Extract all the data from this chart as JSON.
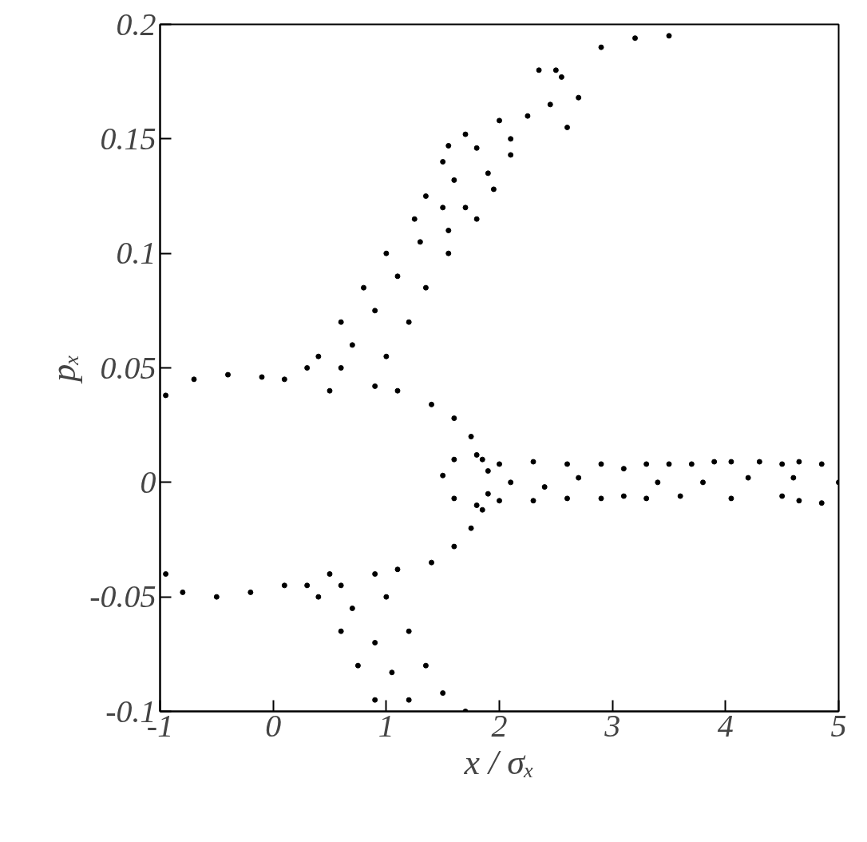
{
  "chart_data": {
    "type": "scatter",
    "xlabel": "x / σₓ",
    "ylabel": "pₓ",
    "xlim": [
      -1,
      5
    ],
    "ylim": [
      -0.1,
      0.2
    ],
    "xticks": [
      -1,
      0,
      1,
      2,
      3,
      4,
      5
    ],
    "yticks": [
      -0.1,
      -0.05,
      0,
      0.05,
      0.1,
      0.15,
      0.2
    ],
    "grid": false,
    "marker": "circle",
    "series": [
      {
        "color": "#000000",
        "x": [
          -0.95,
          -0.7,
          -0.4,
          -0.1,
          0.1,
          0.3,
          0.6,
          0.9,
          1.1,
          1.4,
          1.6,
          1.75,
          1.85,
          1.9,
          1.9,
          1.85,
          1.75,
          1.6,
          1.4,
          1.1,
          0.9,
          0.6,
          0.3,
          0.1,
          -0.2,
          -0.5,
          -0.8,
          -0.95,
          0.5,
          0.5,
          1.5,
          1.6,
          1.8,
          1.6,
          1.8
        ],
        "values": [
          0.038,
          0.045,
          0.047,
          0.046,
          0.045,
          0.05,
          0.05,
          0.042,
          0.04,
          0.034,
          0.028,
          0.02,
          0.01,
          0.005,
          -0.005,
          -0.012,
          -0.02,
          -0.028,
          -0.035,
          -0.038,
          -0.04,
          -0.045,
          -0.045,
          -0.045,
          -0.048,
          -0.05,
          -0.048,
          -0.04,
          0.04,
          -0.04,
          0.003,
          0.01,
          0.012,
          -0.007,
          -0.01
        ]
      },
      {
        "color": "#000000",
        "x": [
          0.4,
          0.7,
          1.0,
          0.6,
          0.9,
          1.2,
          0.8,
          1.1,
          1.35,
          1.0,
          1.3,
          1.55,
          1.25,
          1.5,
          1.8,
          1.55,
          1.35,
          1.6,
          1.95,
          1.7,
          1.5,
          1.8,
          2.1,
          1.9,
          1.55,
          1.7,
          2.0,
          2.25,
          2.1,
          2.35,
          2.55,
          2.7,
          2.6,
          2.45,
          2.5,
          2.9,
          3.2,
          3.5
        ],
        "values": [
          0.055,
          0.06,
          0.055,
          0.07,
          0.075,
          0.07,
          0.085,
          0.09,
          0.085,
          0.1,
          0.105,
          0.1,
          0.115,
          0.12,
          0.115,
          0.11,
          0.125,
          0.132,
          0.128,
          0.12,
          0.14,
          0.146,
          0.143,
          0.135,
          0.147,
          0.152,
          0.158,
          0.16,
          0.15,
          0.18,
          0.177,
          0.168,
          0.155,
          0.165,
          0.18,
          0.19,
          0.194,
          0.195
        ]
      },
      {
        "color": "#000000",
        "x": [
          2.0,
          2.3,
          2.6,
          2.9,
          2.1,
          2.4,
          2.7,
          2.0,
          2.3,
          2.6,
          2.9,
          3.1,
          3.3,
          3.4,
          3.3,
          3.1,
          3.5,
          3.7,
          3.8,
          3.6,
          3.9,
          4.05,
          4.2,
          4.05,
          4.3,
          4.5,
          4.6,
          4.5,
          4.65,
          4.85,
          5.0,
          4.85,
          4.65
        ],
        "values": [
          0.008,
          0.009,
          0.008,
          0.008,
          0,
          -0.002,
          0.002,
          -0.008,
          -0.008,
          -0.007,
          -0.007,
          0.006,
          0.008,
          0,
          -0.007,
          -0.006,
          0.008,
          0.008,
          0,
          -0.006,
          0.009,
          0.009,
          0.002,
          -0.007,
          0.009,
          0.008,
          0.002,
          -0.006,
          0.009,
          0.008,
          0.0,
          -0.009,
          -0.008
        ]
      },
      {
        "color": "#000000",
        "x": [
          0.4,
          0.7,
          1.0,
          0.6,
          0.9,
          1.2,
          0.75,
          1.05,
          1.35,
          0.9,
          1.2,
          1.5,
          1.7
        ],
        "values": [
          -0.05,
          -0.055,
          -0.05,
          -0.065,
          -0.07,
          -0.065,
          -0.08,
          -0.083,
          -0.08,
          -0.095,
          -0.095,
          -0.092,
          -0.1
        ]
      }
    ]
  }
}
